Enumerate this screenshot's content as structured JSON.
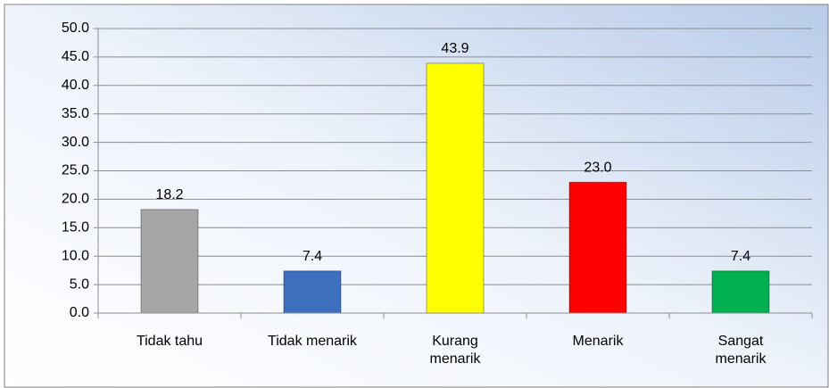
{
  "chart_data": {
    "type": "bar",
    "categories": [
      "Tidak tahu",
      "Tidak menarik",
      "Kurang menarik",
      "Menarik",
      "Sangat menarik"
    ],
    "values": [
      18.2,
      7.4,
      43.9,
      23,
      7.4
    ],
    "value_labels": [
      "18.2",
      "7.4",
      "43.9",
      "23.0",
      "7.4"
    ],
    "colors": [
      "#a6a6a6",
      "#3d6fbf",
      "#ffff00",
      "#ff0000",
      "#00b050"
    ],
    "ylim": [
      0,
      50
    ],
    "yticks": [
      {
        "value": 0,
        "label": "0.0"
      },
      {
        "value": 5,
        "label": "5.0"
      },
      {
        "value": 10,
        "label": "10.0"
      },
      {
        "value": 15,
        "label": "15.0"
      },
      {
        "value": 20,
        "label": "20.0"
      },
      {
        "value": 25,
        "label": "25.0"
      },
      {
        "value": 30,
        "label": "30.0"
      },
      {
        "value": 35,
        "label": "35.0"
      },
      {
        "value": 40,
        "label": "40.0"
      },
      {
        "value": 45,
        "label": "45.0"
      },
      {
        "value": 50,
        "label": "50.0"
      }
    ],
    "grid": true
  }
}
